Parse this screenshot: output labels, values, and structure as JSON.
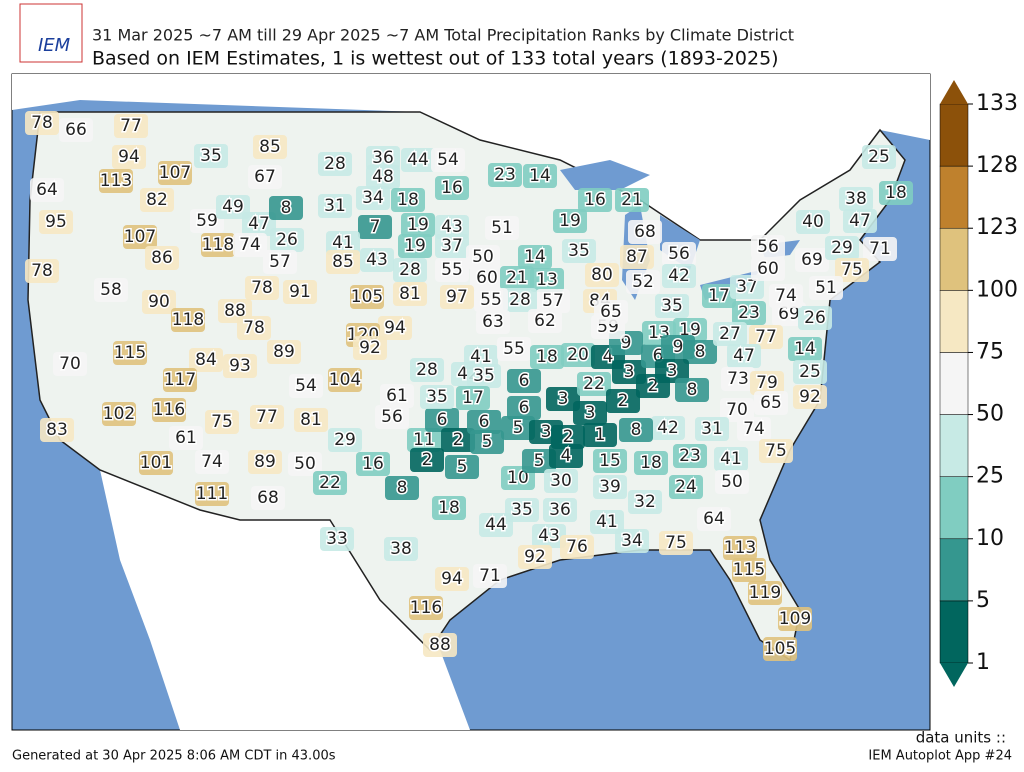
{
  "header": {
    "logo_text": "IEM",
    "title": "31 Mar 2025 ~7 AM till 29 Apr 2025 ~7 AM Total Precipitation Ranks by Climate District",
    "subtitle": "Based on IEM Estimates, 1 is wettest out of 133 total years (1893-2025)"
  },
  "colorbar": {
    "ticks": [
      1,
      5,
      10,
      25,
      50,
      75,
      100,
      123,
      128,
      133
    ],
    "colors": [
      "#01665e",
      "#35978f",
      "#80cdc1",
      "#c7eae5",
      "#f5f5f5",
      "#f6e8c3",
      "#dfc27d",
      "#bf812d",
      "#8c510a"
    ],
    "units_label": "data units ::"
  },
  "district_ranks": [
    78,
    66,
    77,
    94,
    113,
    107,
    64,
    82,
    95,
    107,
    86,
    59,
    47,
    118,
    74,
    26,
    57,
    35,
    85,
    67,
    49,
    8,
    31,
    28,
    36,
    44,
    54,
    48,
    34,
    18,
    16,
    7,
    19,
    43,
    41,
    85,
    43,
    19,
    37,
    28,
    55,
    23,
    14,
    51,
    50,
    60,
    21,
    13,
    14,
    35,
    19,
    16,
    21,
    68,
    87,
    56,
    52,
    42,
    80,
    84,
    57,
    28,
    55,
    97,
    81,
    105,
    63,
    62,
    94,
    120,
    92,
    78,
    91,
    58,
    78,
    90,
    118,
    88,
    78,
    89,
    104,
    54,
    115,
    84,
    93,
    117,
    70,
    116,
    61,
    75,
    102,
    83,
    101,
    74,
    77,
    81,
    89,
    50,
    111,
    68,
    29,
    22,
    16,
    8,
    56,
    11,
    6,
    2,
    2,
    6,
    5,
    5,
    28,
    42,
    41,
    35,
    61,
    35,
    17,
    55,
    18,
    20,
    4,
    6,
    6,
    3,
    22,
    3,
    5,
    3,
    2,
    1,
    2,
    3,
    2,
    6,
    13,
    9,
    59,
    65,
    35,
    19,
    9,
    8,
    3,
    8,
    17,
    37,
    23,
    69,
    27,
    77,
    26,
    47,
    14,
    73,
    79,
    25,
    70,
    65,
    92,
    42,
    8,
    31,
    74,
    75,
    10,
    5,
    4,
    30,
    15,
    18,
    23,
    41,
    50,
    24,
    39,
    32,
    36,
    35,
    44,
    43,
    41,
    64,
    76,
    34,
    75,
    113,
    115,
    119,
    109,
    105,
    92,
    71,
    94,
    116,
    88,
    33,
    38,
    18,
    25,
    38,
    18,
    47,
    40,
    56,
    60,
    69,
    29,
    71,
    75,
    51,
    74
  ],
  "footer": {
    "generated": "Generated at 30 Apr 2025 8:06 AM CDT in 43.00s",
    "app": "IEM Autoplot App #24"
  }
}
